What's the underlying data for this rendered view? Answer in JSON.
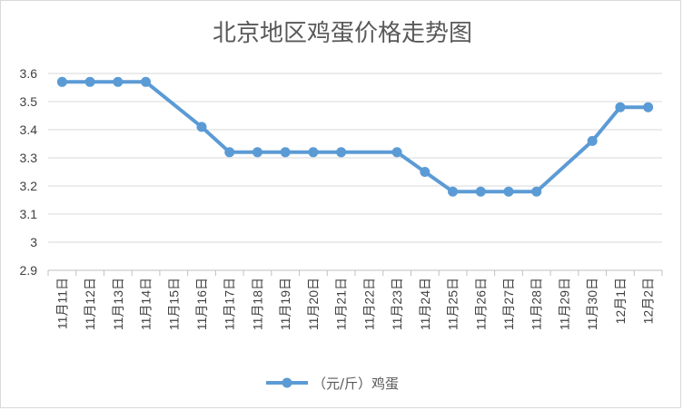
{
  "chart_data": {
    "type": "line",
    "title": "北京地区鸡蛋价格走势图",
    "xlabel": "",
    "ylabel": "",
    "categories": [
      "11月11日",
      "11月12日",
      "11月13日",
      "11月14日",
      "11月15日",
      "11月16日",
      "11月17日",
      "11月18日",
      "11月19日",
      "11月20日",
      "11月21日",
      "11月22日",
      "11月23日",
      "11月24日",
      "11月25日",
      "11月26日",
      "11月27日",
      "11月28日",
      "11月29日",
      "11月30日",
      "12月1日",
      "12月2日"
    ],
    "series": [
      {
        "name": "（元/斤）鸡蛋",
        "values": [
          3.57,
          3.57,
          3.57,
          3.57,
          null,
          3.41,
          3.32,
          3.32,
          3.32,
          3.32,
          3.32,
          null,
          3.32,
          3.25,
          3.18,
          3.18,
          3.18,
          3.18,
          null,
          3.36,
          3.48,
          3.48
        ],
        "color": "#5b9bd5"
      }
    ],
    "ylim": [
      2.9,
      3.6
    ],
    "yticks": [
      "3.6",
      "3.5",
      "3.4",
      "3.3",
      "3.2",
      "3.1",
      "3",
      "2.9"
    ],
    "ytick_values": [
      3.6,
      3.5,
      3.4,
      3.3,
      3.2,
      3.1,
      3.0,
      2.9
    ],
    "grid": true,
    "legend": "bottom",
    "gridline_color": "#d9d9d9",
    "axis_color": "#bfbfbf"
  }
}
